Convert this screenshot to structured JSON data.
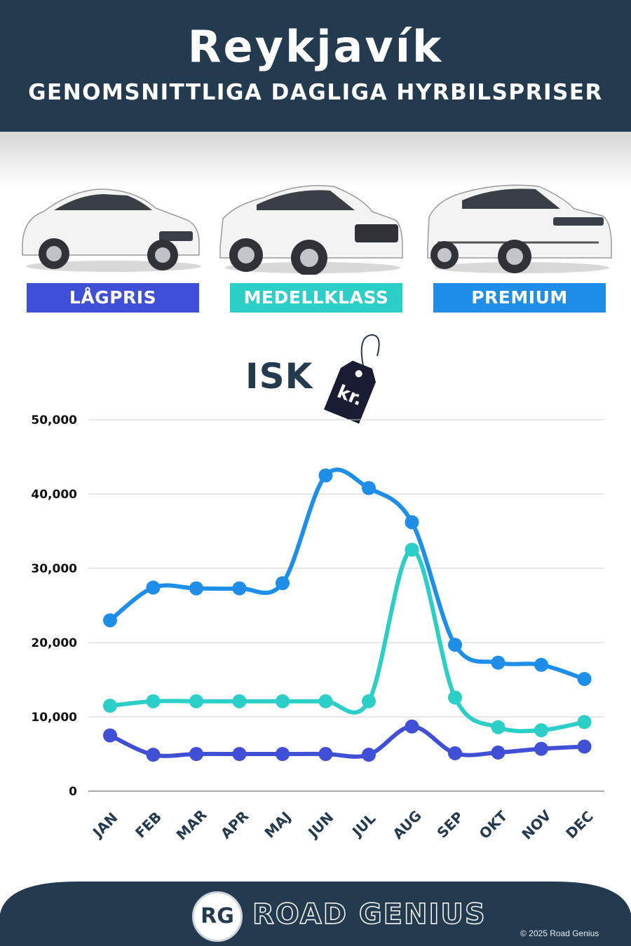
{
  "header": {
    "city": "Reykjavík",
    "subtitle": "GENOMSNITTLIGA DAGLIGA HYRBILSPRISER"
  },
  "categories": [
    {
      "label": "LÅGPRIS",
      "color": "#3f4fd6",
      "icon": "economy-car-icon"
    },
    {
      "label": "MEDELLKLASS",
      "color": "#2ccfc7",
      "icon": "suv-car-icon"
    },
    {
      "label": "PREMIUM",
      "color": "#1e8ee8",
      "icon": "premium-suv-icon"
    }
  ],
  "currency": {
    "label": "ISK",
    "tag_text": "kr."
  },
  "chart_data": {
    "type": "line",
    "categories": [
      "JAN",
      "FEB",
      "MAR",
      "APR",
      "MAJ",
      "JUN",
      "JUL",
      "AUG",
      "SEP",
      "OKT",
      "NOV",
      "DEC"
    ],
    "series": [
      {
        "name": "LÅGPRIS",
        "color": "#3f4fd6",
        "values": [
          7500,
          4900,
          5000,
          5000,
          5000,
          5000,
          4900,
          8700,
          5100,
          5200,
          5700,
          6000
        ]
      },
      {
        "name": "MEDELLKLASS",
        "color": "#2ccfc7",
        "values": [
          11500,
          12100,
          12100,
          12100,
          12100,
          12100,
          12100,
          32500,
          12600,
          8600,
          8200,
          9300
        ]
      },
      {
        "name": "PREMIUM",
        "color": "#1e8ee8",
        "values": [
          23000,
          27400,
          27300,
          27300,
          28000,
          42500,
          40800,
          36200,
          19700,
          17300,
          17000,
          15100
        ]
      }
    ],
    "yticks": [
      "0",
      "10,000",
      "20,000",
      "30,000",
      "40,000",
      "50,000"
    ],
    "ylim": [
      0,
      50000
    ],
    "grid": true,
    "title": "",
    "xlabel": "",
    "ylabel": ""
  },
  "footer": {
    "logo_text": "RG",
    "brand": "ROAD GENIUS",
    "copyright": "© 2025 Road Genius"
  }
}
